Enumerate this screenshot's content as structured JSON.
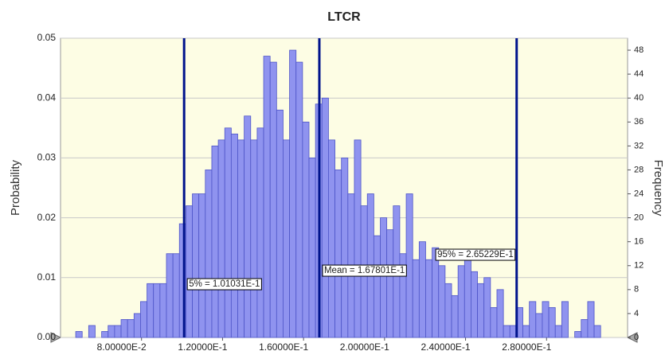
{
  "chart_data": {
    "type": "histogram",
    "title": "LTCR",
    "y_label": "Probability",
    "y2_label": "Frequency",
    "xlim": [
      0.04,
      0.32
    ],
    "xticks": [
      {
        "value": 0.08,
        "label": "8.00000E-2"
      },
      {
        "value": 0.12,
        "label": "1.20000E-1"
      },
      {
        "value": 0.16,
        "label": "1.60000E-1"
      },
      {
        "value": 0.2,
        "label": "2.00000E-1"
      },
      {
        "value": 0.24,
        "label": "2.40000E-1"
      },
      {
        "value": 0.28,
        "label": "2.80000E-1"
      }
    ],
    "ylim": [
      0,
      0.05
    ],
    "yticks": [
      {
        "value": 0,
        "label": "0.00"
      },
      0.01,
      0.02,
      0.03,
      0.04,
      0.05
    ],
    "y2lim": [
      0,
      50
    ],
    "y2ticks": [
      0,
      4,
      8,
      12,
      16,
      20,
      24,
      28,
      32,
      36,
      40,
      44,
      48
    ],
    "grid": true,
    "bins": [
      0.0475,
      0.0507,
      0.0539,
      0.0571,
      0.0603,
      0.0635,
      0.0667,
      0.0699,
      0.0731,
      0.0763,
      0.0795,
      0.0827,
      0.0859,
      0.0891,
      0.0923,
      0.0955,
      0.0987,
      0.1019,
      0.1051,
      0.1083,
      0.1115,
      0.1147,
      0.1179,
      0.1211,
      0.1243,
      0.1275,
      0.1307,
      0.1339,
      0.1371,
      0.1403,
      0.1435,
      0.1467,
      0.1499,
      0.1531,
      0.1563,
      0.1595,
      0.1627,
      0.1659,
      0.1691,
      0.1723,
      0.1755,
      0.1787,
      0.1819,
      0.1851,
      0.1883,
      0.1915,
      0.1947,
      0.1979,
      0.2011,
      0.2043,
      0.2075,
      0.2107,
      0.2139,
      0.2171,
      0.2203,
      0.2235,
      0.2267,
      0.2299,
      0.2331,
      0.2363,
      0.2395,
      0.2427,
      0.2459,
      0.2491,
      0.2523,
      0.2555,
      0.2587,
      0.2619,
      0.2651,
      0.2683,
      0.2715,
      0.2747,
      0.2779,
      0.2811,
      0.2843,
      0.2875,
      0.2907,
      0.2939,
      0.2971,
      0.3003,
      0.3035,
      0.3067
    ],
    "series": [
      {
        "axis": "y2",
        "color": "#8f93ef",
        "values": [
          1,
          0,
          2,
          0,
          1,
          2,
          2,
          3,
          3,
          4,
          6,
          9,
          9,
          9,
          14,
          14,
          19,
          22,
          24,
          24,
          28,
          32,
          33,
          35,
          34,
          33,
          37,
          33,
          35,
          47,
          46,
          38,
          33,
          48,
          46,
          36,
          30,
          39,
          40,
          33,
          28,
          30,
          24,
          33,
          22,
          24,
          17,
          20,
          18,
          22,
          14,
          24,
          13,
          16,
          13,
          15,
          12,
          9,
          7,
          12,
          13,
          11,
          9,
          10,
          5,
          8,
          2,
          2,
          5,
          2,
          6,
          4,
          6,
          5,
          2,
          6,
          0,
          1,
          3,
          6,
          2
        ]
      }
    ],
    "markers": [
      {
        "label": "5% = 1.01031E-1",
        "value": 0.101031
      },
      {
        "label": "Mean = 1.67801E-1",
        "value": 0.167801
      },
      {
        "label": "95% = 2.65229E-1",
        "value": 0.265229
      }
    ],
    "marker_color": "#00138c"
  }
}
